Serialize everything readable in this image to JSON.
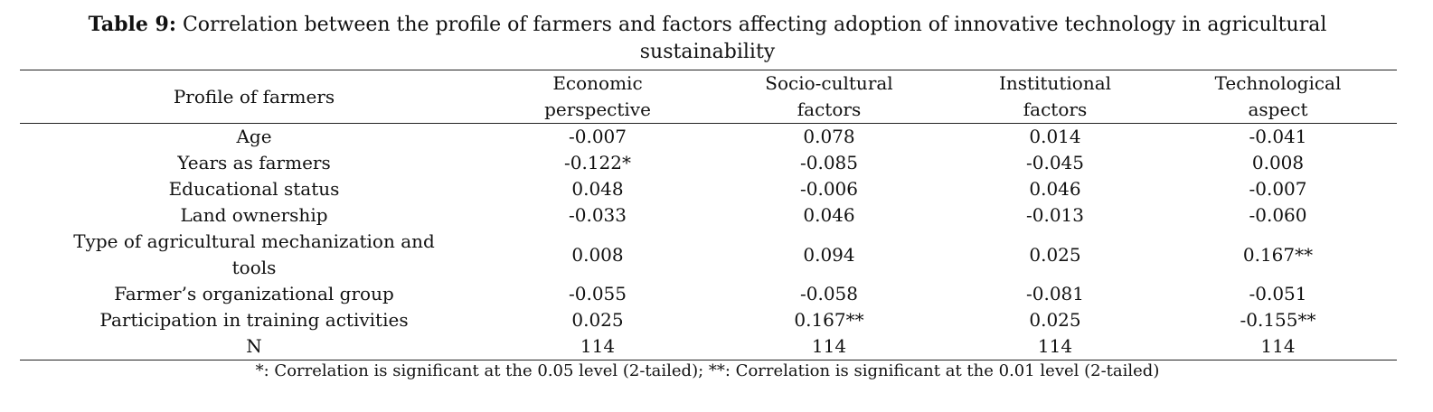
{
  "caption": {
    "label": "Table 9:",
    "text": " Correlation between the profile of farmers and factors affecting adoption of innovative technology in agricultural sustainability"
  },
  "table": {
    "headers": [
      "Profile of farmers",
      "Economic perspective",
      "Socio-cultural factors",
      "Institutional factors",
      "Technological aspect"
    ],
    "rows": [
      [
        "Age",
        "-0.007",
        "0.078",
        "0.014",
        "-0.041"
      ],
      [
        "Years as farmers",
        "-0.122*",
        "-0.085",
        "-0.045",
        "0.008"
      ],
      [
        "Educational status",
        "0.048",
        "-0.006",
        "0.046",
        "-0.007"
      ],
      [
        "Land ownership",
        "-0.033",
        "0.046",
        "-0.013",
        "-0.060"
      ],
      [
        "Type of agricultural mechanization and tools",
        "0.008",
        "0.094",
        "0.025",
        "0.167**"
      ],
      [
        "Farmer’s organizational group",
        "-0.055",
        "-0.058",
        "-0.081",
        "-0.051"
      ],
      [
        "Participation in training activities",
        "0.025",
        "0.167**",
        "0.025",
        "-0.155**"
      ],
      [
        "N",
        "114",
        "114",
        "114",
        "114"
      ]
    ]
  },
  "footnote": "*: Correlation is significant at the 0.05 level (2-tailed); **: Correlation is significant at the 0.01 level (2-tailed)"
}
